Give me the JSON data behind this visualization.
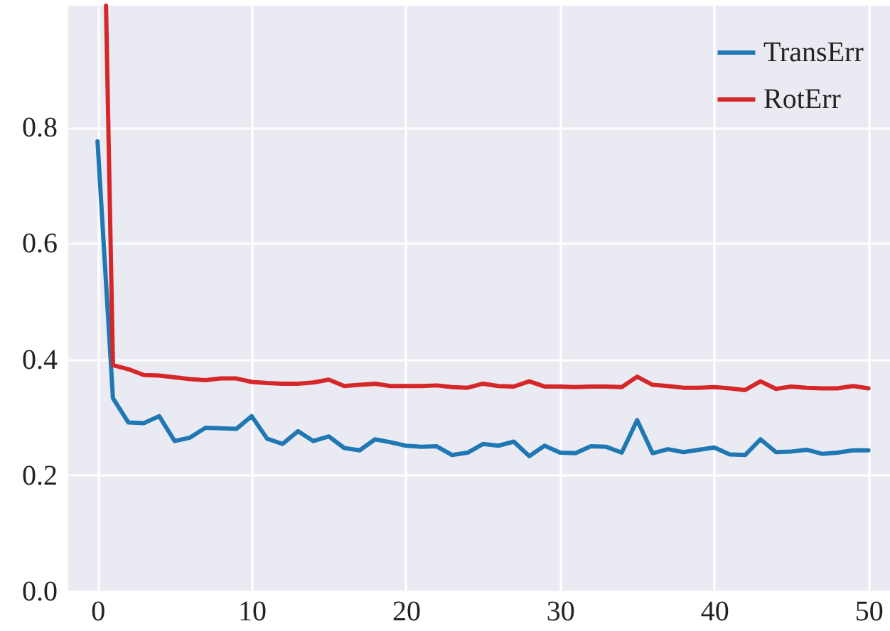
{
  "chart_data": {
    "type": "line",
    "x": [
      0,
      1,
      2,
      3,
      4,
      5,
      6,
      7,
      8,
      9,
      10,
      11,
      12,
      13,
      14,
      15,
      16,
      17,
      18,
      19,
      20,
      21,
      22,
      23,
      24,
      25,
      26,
      27,
      28,
      29,
      30,
      31,
      32,
      33,
      34,
      35,
      36,
      37,
      38,
      39,
      40,
      41,
      42,
      43,
      44,
      45,
      46,
      47,
      48,
      49,
      50
    ],
    "series": [
      {
        "name": "TransErr",
        "color": "#1f77b4",
        "values": [
          0.776,
          0.333,
          0.291,
          0.29,
          0.302,
          0.259,
          0.265,
          0.282,
          0.281,
          0.28,
          0.302,
          0.263,
          0.254,
          0.276,
          0.259,
          0.267,
          0.247,
          0.243,
          0.262,
          0.257,
          0.251,
          0.249,
          0.25,
          0.235,
          0.239,
          0.254,
          0.251,
          0.258,
          0.233,
          0.251,
          0.239,
          0.238,
          0.25,
          0.249,
          0.239,
          0.295,
          0.238,
          0.245,
          0.24,
          0.244,
          0.248,
          0.236,
          0.235,
          0.262,
          0.24,
          0.241,
          0.244,
          0.237,
          0.239,
          0.243,
          0.243
        ]
      },
      {
        "name": "RotErr",
        "color": "#d62728",
        "x": [
          0.55,
          1,
          2,
          3,
          4,
          5,
          6,
          7,
          8,
          9,
          10,
          11,
          12,
          13,
          14,
          15,
          16,
          17,
          18,
          19,
          20,
          21,
          22,
          23,
          24,
          25,
          26,
          27,
          28,
          29,
          30,
          31,
          32,
          33,
          34,
          35,
          36,
          37,
          38,
          39,
          40,
          41,
          42,
          43,
          44,
          45,
          46,
          47,
          48,
          49,
          50
        ],
        "values": [
          1.01,
          0.39,
          0.383,
          0.373,
          0.372,
          0.369,
          0.366,
          0.364,
          0.367,
          0.367,
          0.361,
          0.359,
          0.358,
          0.358,
          0.36,
          0.365,
          0.354,
          0.356,
          0.358,
          0.354,
          0.354,
          0.354,
          0.355,
          0.352,
          0.351,
          0.358,
          0.354,
          0.353,
          0.362,
          0.353,
          0.353,
          0.352,
          0.353,
          0.353,
          0.352,
          0.37,
          0.356,
          0.354,
          0.351,
          0.351,
          0.352,
          0.35,
          0.347,
          0.362,
          0.349,
          0.353,
          0.351,
          0.35,
          0.35,
          0.354,
          0.35
        ]
      }
    ],
    "xlim": [
      -1.9,
      51.4
    ],
    "xticks": [
      0,
      10,
      20,
      30,
      40,
      50
    ],
    "ylim": [
      0,
      1.01
    ],
    "yticks": [
      {
        "value": 0,
        "label": "0.0"
      },
      0.2,
      0.4,
      0.6,
      0.8
    ],
    "grid": true,
    "legend": "top right"
  }
}
